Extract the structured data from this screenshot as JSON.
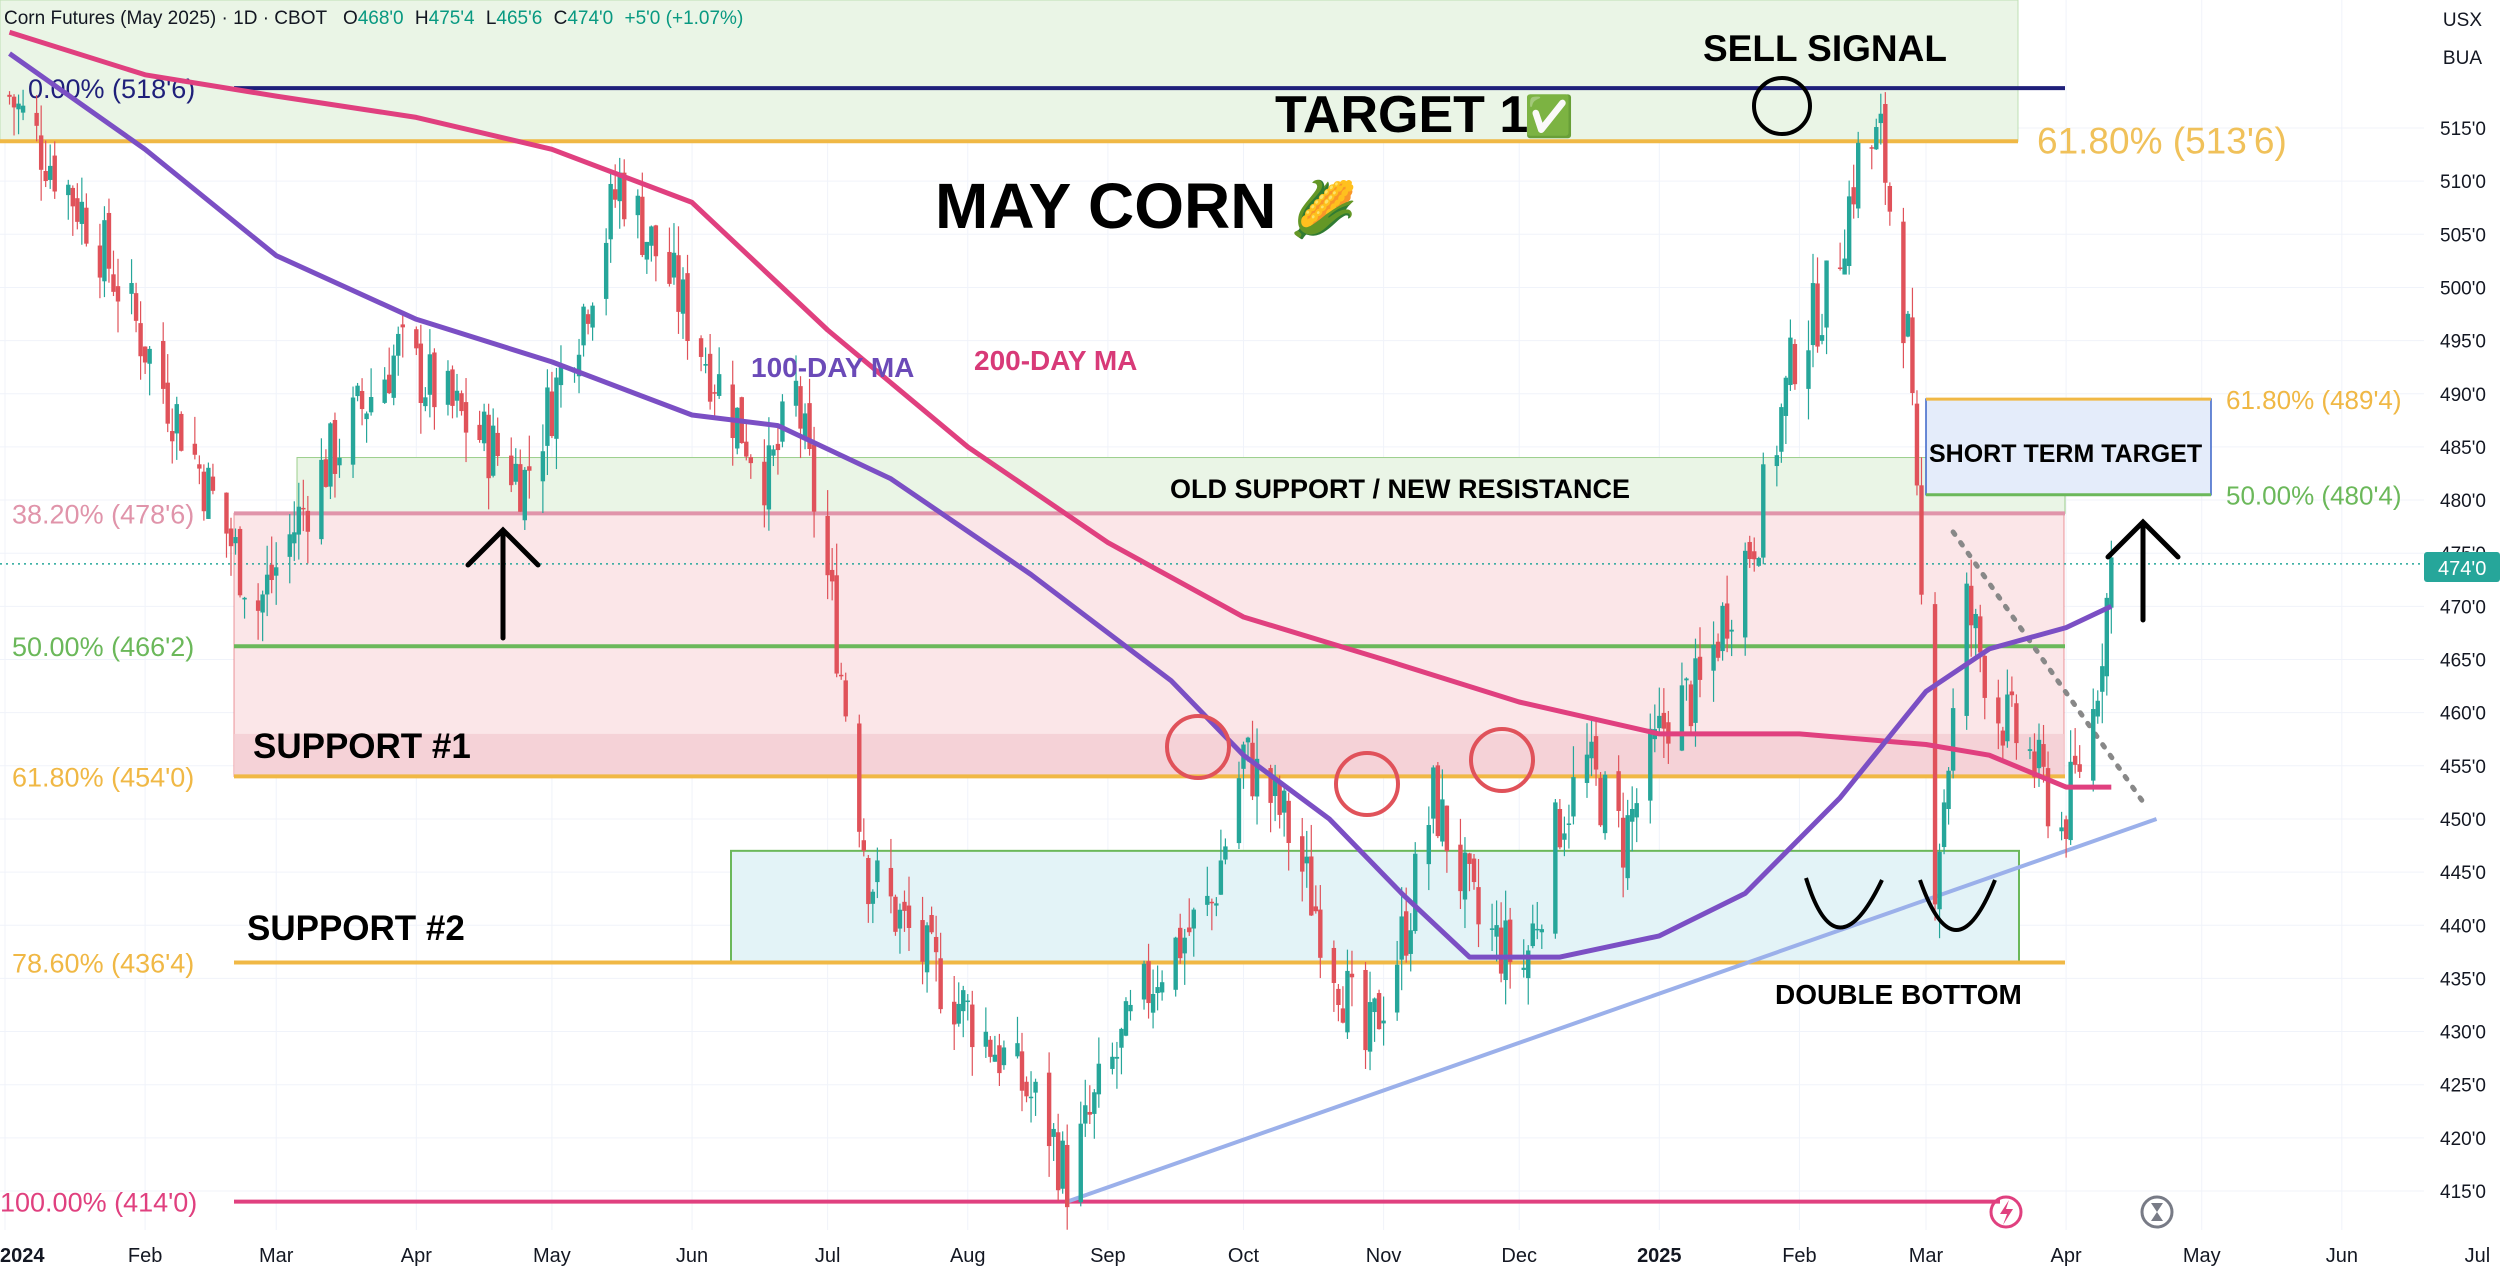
{
  "header": {
    "symbol": "Corn Futures (May 2025) · 1D · CBOT",
    "open_label": "O",
    "open": "468'0",
    "high_label": "H",
    "high": "475'4",
    "low_label": "L",
    "low": "465'6",
    "close_label": "C",
    "close": "474'0",
    "change": "+5'0 (+1.07%)"
  },
  "corner": {
    "currency": "USX",
    "unit": "BUA"
  },
  "colors": {
    "up": "#26a69a",
    "down": "#e0525a",
    "ma100": "#7b4fc4",
    "ma200": "#e0407f",
    "fib_orange": "#f0b845",
    "fib_green": "#6bb85a",
    "fib_navy": "#1f1f7a",
    "trendline": "#9bb0ea"
  },
  "chart_data": {
    "type": "candlestick",
    "title": "MAY CORN",
    "title_emoji": "🌽",
    "ylim": [
      412,
      522
    ],
    "y_ticks": [
      "415'0",
      "420'0",
      "425'0",
      "430'0",
      "435'0",
      "440'0",
      "445'0",
      "450'0",
      "455'0",
      "460'0",
      "465'0",
      "470'0",
      "475'0",
      "480'0",
      "485'0",
      "490'0",
      "495'0",
      "500'0",
      "505'0",
      "510'0",
      "515'0"
    ],
    "last_price_label": "474'0",
    "last_price": 474,
    "x_ticks": [
      "2024",
      "Feb",
      "Mar",
      "Apr",
      "May",
      "Jun",
      "Jul",
      "Aug",
      "Sep",
      "Oct",
      "Nov",
      "Dec",
      "2025",
      "Feb",
      "Mar",
      "Apr",
      "May",
      "Jun",
      "Jul"
    ],
    "price_path": [
      [
        "2024-01-02",
        518
      ],
      [
        "2024-01-20",
        506
      ],
      [
        "2024-02-10",
        486
      ],
      [
        "2024-02-26",
        470
      ],
      [
        "2024-03-10",
        482
      ],
      [
        "2024-03-28",
        494
      ],
      [
        "2024-04-10",
        488
      ],
      [
        "2024-04-25",
        482
      ],
      [
        "2024-05-08",
        498
      ],
      [
        "2024-05-16",
        510
      ],
      [
        "2024-05-28",
        500
      ],
      [
        "2024-06-08",
        490
      ],
      [
        "2024-06-18",
        482
      ],
      [
        "2024-06-24",
        490
      ],
      [
        "2024-07-02",
        470
      ],
      [
        "2024-07-10",
        445
      ],
      [
        "2024-07-24",
        436
      ],
      [
        "2024-08-08",
        428
      ],
      [
        "2024-08-18",
        422
      ],
      [
        "2024-08-23",
        416
      ],
      [
        "2024-08-30",
        424
      ],
      [
        "2024-09-12",
        436
      ],
      [
        "2024-09-24",
        442
      ],
      [
        "2024-10-01",
        456
      ],
      [
        "2024-10-10",
        450
      ],
      [
        "2024-10-20",
        438
      ],
      [
        "2024-10-28",
        428
      ],
      [
        "2024-11-06",
        440
      ],
      [
        "2024-11-12",
        452
      ],
      [
        "2024-11-22",
        440
      ],
      [
        "2024-12-02",
        436
      ],
      [
        "2024-12-10",
        450
      ],
      [
        "2024-12-16",
        455
      ],
      [
        "2024-12-24",
        448
      ],
      [
        "2025-01-03",
        460
      ],
      [
        "2025-01-10",
        462
      ],
      [
        "2025-01-16",
        470
      ],
      [
        "2025-01-23",
        478
      ],
      [
        "2025-01-31",
        494
      ],
      [
        "2025-02-08",
        500
      ],
      [
        "2025-02-14",
        512
      ],
      [
        "2025-02-19",
        514
      ],
      [
        "2025-02-25",
        495
      ],
      [
        "2025-03-03",
        445
      ],
      [
        "2025-03-10",
        470
      ],
      [
        "2025-03-17",
        460
      ],
      [
        "2025-03-24",
        456
      ],
      [
        "2025-03-31",
        449
      ],
      [
        "2025-04-07",
        460
      ],
      [
        "2025-04-11",
        474
      ]
    ],
    "ma100_label": "100-DAY MA",
    "ma100": [
      [
        "2024-01-02",
        522
      ],
      [
        "2024-02-01",
        513
      ],
      [
        "2024-03-01",
        503
      ],
      [
        "2024-04-01",
        497
      ],
      [
        "2024-05-01",
        493
      ],
      [
        "2024-06-01",
        488
      ],
      [
        "2024-06-20",
        487
      ],
      [
        "2024-07-15",
        482
      ],
      [
        "2024-08-15",
        473
      ],
      [
        "2024-09-15",
        463
      ],
      [
        "2024-10-01",
        456
      ],
      [
        "2024-10-20",
        450
      ],
      [
        "2024-11-05",
        443
      ],
      [
        "2024-11-20",
        437
      ],
      [
        "2024-12-10",
        437
      ],
      [
        "2025-01-01",
        439
      ],
      [
        "2025-01-20",
        443
      ],
      [
        "2025-02-10",
        452
      ],
      [
        "2025-03-01",
        462
      ],
      [
        "2025-03-15",
        466
      ],
      [
        "2025-04-01",
        468
      ],
      [
        "2025-04-11",
        470
      ]
    ],
    "ma200_label": "200-DAY MA",
    "ma200": [
      [
        "2024-01-02",
        524
      ],
      [
        "2024-02-01",
        520
      ],
      [
        "2024-03-01",
        518
      ],
      [
        "2024-04-01",
        516
      ],
      [
        "2024-05-01",
        513
      ],
      [
        "2024-06-01",
        508
      ],
      [
        "2024-07-01",
        496
      ],
      [
        "2024-08-01",
        485
      ],
      [
        "2024-09-01",
        476
      ],
      [
        "2024-10-01",
        469
      ],
      [
        "2024-11-01",
        465
      ],
      [
        "2024-12-01",
        461
      ],
      [
        "2025-01-01",
        458
      ],
      [
        "2025-02-01",
        458
      ],
      [
        "2025-03-01",
        457
      ],
      [
        "2025-03-15",
        456
      ],
      [
        "2025-04-01",
        453
      ],
      [
        "2025-04-11",
        453
      ]
    ],
    "fib_levels": [
      {
        "label": "0.00% (518'6)",
        "value": 518.75,
        "color": "#1f1f7a"
      },
      {
        "label": "38.20% (478'6)",
        "value": 478.75,
        "color": "#e094aa"
      },
      {
        "label": "50.00% (466'2)",
        "value": 466.25,
        "color": "#6bb85a"
      },
      {
        "label": "61.80% (454'0)",
        "value": 454,
        "color": "#f0b845"
      },
      {
        "label": "78.60% (436'4)",
        "value": 436.5,
        "color": "#f0b845"
      },
      {
        "label": "100.00% (414'0)",
        "value": 414,
        "color": "#e0407f"
      }
    ],
    "fib_right_level": {
      "label": "61.80% (513'6)",
      "value": 513.75
    },
    "target_fibs": [
      {
        "label": "61.80% (489'4)",
        "value": 489.5
      },
      {
        "label": "50.00% (480'4)",
        "value": 480.5
      }
    ],
    "annotations": {
      "sell_signal": "SELL SIGNAL",
      "target1": "TARGET 1",
      "target1_check": "✅",
      "resistance": "OLD SUPPORT / NEW RESISTANCE",
      "support1": "SUPPORT #1",
      "support2": "SUPPORT #2",
      "short_term_target": "SHORT TERM TARGET",
      "double_bottom": "DOUBLE BOTTOM"
    }
  }
}
